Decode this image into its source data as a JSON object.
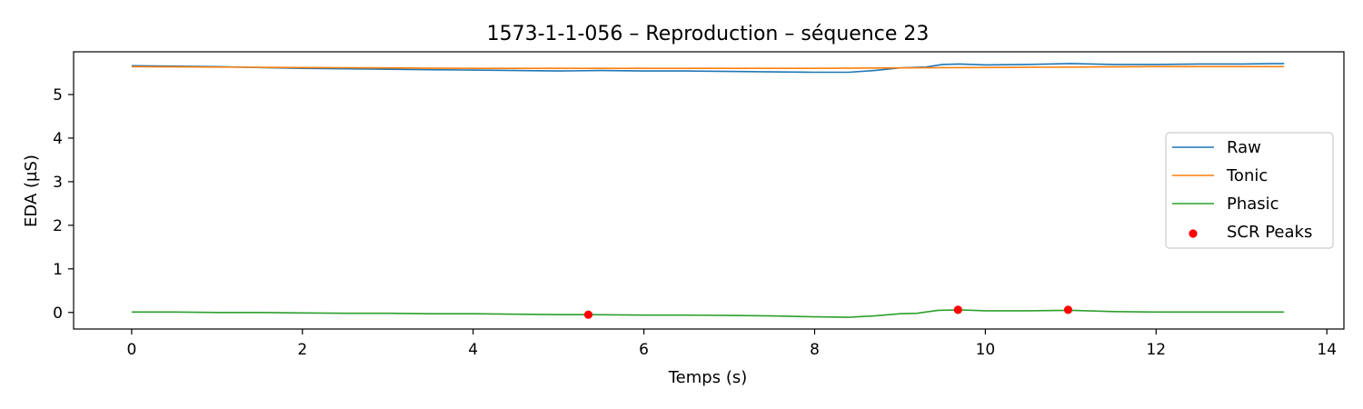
{
  "chart_data": {
    "type": "line",
    "title": "1573-1-1-056 – Reproduction – séquence 23",
    "xlabel": "Temps (s)",
    "ylabel": "EDA (µS)",
    "xlim": [
      -0.68,
      14.2
    ],
    "ylim": [
      -0.38,
      5.98
    ],
    "xticks": [
      0,
      2,
      4,
      6,
      8,
      10,
      12,
      14
    ],
    "yticks": [
      0,
      1,
      2,
      3,
      4,
      5
    ],
    "grid": false,
    "legend_position": "center-right",
    "series": [
      {
        "name": "Raw",
        "kind": "line",
        "color": "#1f77b4",
        "x": [
          0,
          0.5,
          1,
          1.5,
          2,
          2.5,
          3,
          3.5,
          4,
          4.5,
          5,
          5.5,
          6,
          6.5,
          7,
          7.5,
          8,
          8.4,
          8.7,
          9.0,
          9.3,
          9.5,
          9.7,
          10,
          10.5,
          11,
          11.5,
          12,
          12.5,
          13,
          13.5
        ],
        "y": [
          5.66,
          5.65,
          5.64,
          5.62,
          5.6,
          5.59,
          5.58,
          5.57,
          5.56,
          5.55,
          5.54,
          5.55,
          5.54,
          5.54,
          5.53,
          5.52,
          5.51,
          5.51,
          5.55,
          5.61,
          5.63,
          5.69,
          5.7,
          5.68,
          5.69,
          5.71,
          5.69,
          5.69,
          5.7,
          5.7,
          5.71
        ]
      },
      {
        "name": "Tonic",
        "kind": "line",
        "color": "#ff7f0e",
        "x": [
          0,
          1,
          2,
          3,
          4,
          5,
          6,
          7,
          8,
          9,
          10,
          11,
          12,
          13,
          13.5
        ],
        "y": [
          5.64,
          5.63,
          5.62,
          5.61,
          5.6,
          5.6,
          5.6,
          5.6,
          5.6,
          5.61,
          5.62,
          5.63,
          5.64,
          5.64,
          5.64
        ]
      },
      {
        "name": "Phasic",
        "kind": "line",
        "color": "#2ca02c",
        "x": [
          0,
          0.5,
          1,
          1.5,
          2,
          2.5,
          3,
          3.5,
          4,
          4.5,
          5,
          5.35,
          6,
          6.5,
          7,
          7.5,
          8,
          8.4,
          8.7,
          9.0,
          9.2,
          9.45,
          9.7,
          10,
          10.5,
          11,
          11.5,
          12,
          12.5,
          13,
          13.5
        ],
        "y": [
          0.01,
          0.01,
          0.0,
          0.0,
          -0.01,
          -0.02,
          -0.02,
          -0.03,
          -0.03,
          -0.04,
          -0.05,
          -0.05,
          -0.06,
          -0.06,
          -0.07,
          -0.08,
          -0.1,
          -0.11,
          -0.08,
          -0.03,
          -0.02,
          0.05,
          0.06,
          0.04,
          0.04,
          0.05,
          0.02,
          0.01,
          0.01,
          0.01,
          0.01
        ]
      },
      {
        "name": "SCR Peaks",
        "kind": "scatter",
        "color": "#ff0000",
        "x": [
          5.35,
          9.68,
          10.97
        ],
        "y": [
          -0.05,
          0.06,
          0.06
        ]
      }
    ]
  }
}
